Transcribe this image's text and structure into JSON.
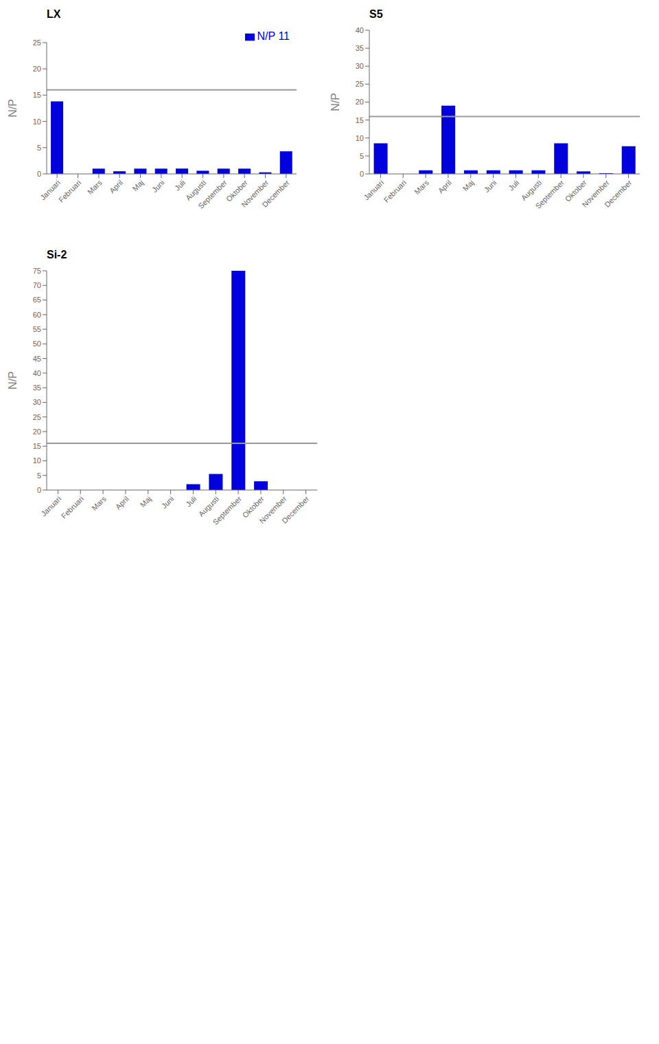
{
  "chart_data": [
    {
      "type": "bar",
      "title": "LX",
      "categories": [
        "Januari",
        "Februari",
        "Mars",
        "April",
        "Maj",
        "Juni",
        "Juli",
        "Augusti",
        "September",
        "Oktober",
        "November",
        "December"
      ],
      "series": [
        {
          "name": "N/P 11",
          "color": "#0000dd",
          "values": [
            13.8,
            0.0,
            1.0,
            0.5,
            1.0,
            1.0,
            1.0,
            0.6,
            1.0,
            1.0,
            0.3,
            4.3
          ]
        }
      ],
      "ylabel": "N/P",
      "ylim": [
        0,
        25
      ],
      "yticks": [
        0,
        5,
        10,
        15,
        20,
        25
      ],
      "reference_line": {
        "value": 16,
        "color": "#999999"
      },
      "legend": "upper right",
      "grid": false
    },
    {
      "type": "bar",
      "title": "S5",
      "categories": [
        "Januari",
        "Februari",
        "Mars",
        "April",
        "Maj",
        "Juni",
        "Juli",
        "Augusti",
        "September",
        "Oktober",
        "November",
        "December"
      ],
      "values": [
        8.5,
        0.0,
        1.0,
        19.0,
        1.0,
        1.0,
        1.0,
        1.0,
        8.5,
        0.7,
        0.2,
        7.7
      ],
      "color": "#0000dd",
      "ylabel": "N/P",
      "ylim": [
        0,
        40
      ],
      "yticks": [
        0,
        5,
        10,
        15,
        20,
        25,
        30,
        35,
        40
      ],
      "reference_line": {
        "value": 16,
        "color": "#999999"
      },
      "grid": false
    },
    {
      "type": "bar",
      "title": "Si-2",
      "categories": [
        "Januari",
        "Februari",
        "Mars",
        "April",
        "Maj",
        "Juni",
        "Juli",
        "Augusti",
        "September",
        "Oktober",
        "November",
        "December"
      ],
      "values": [
        0.0,
        0.0,
        0.0,
        0.0,
        0.0,
        0.0,
        2.0,
        5.5,
        75.0,
        3.0,
        0.0,
        0.0
      ],
      "color": "#0000dd",
      "ylabel": "N/P",
      "ylim": [
        0,
        75
      ],
      "yticks": [
        0,
        5,
        10,
        15,
        20,
        25,
        30,
        35,
        40,
        45,
        50,
        55,
        60,
        65,
        70,
        75
      ],
      "reference_line": {
        "value": 16,
        "color": "#999999"
      },
      "grid": false
    }
  ]
}
